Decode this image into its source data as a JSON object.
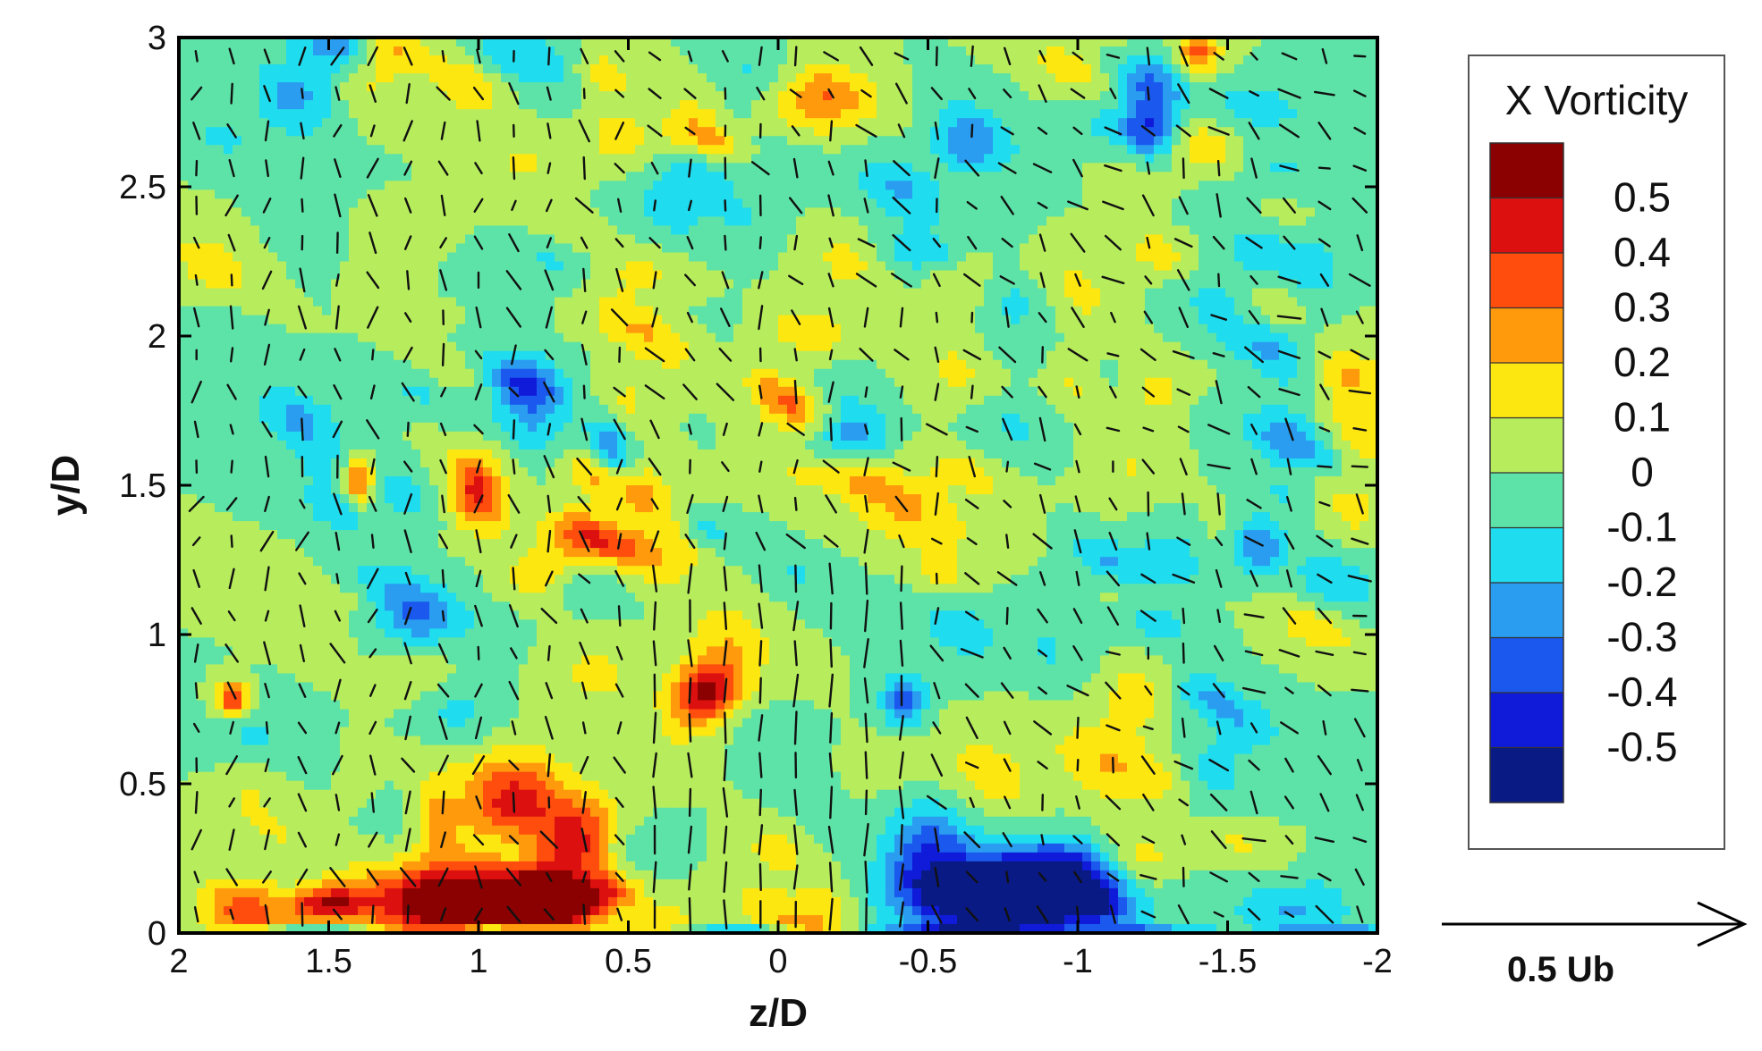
{
  "chart_data": {
    "type": "heatmap",
    "xlabel": "z/D",
    "ylabel": "y/D",
    "xlim": [
      2,
      -2
    ],
    "ylim": [
      0,
      3
    ],
    "x_ticks": [
      "2",
      "1.5",
      "1",
      "0.5",
      "0",
      "-0.5",
      "-1",
      "-1.5",
      "-2"
    ],
    "y_ticks": [
      "0",
      "0.5",
      "1",
      "1.5",
      "2",
      "2.5",
      "3"
    ],
    "legend": {
      "title": "X Vorticity",
      "labels": [
        "0.5",
        "0.4",
        "0.3",
        "0.2",
        "0.1",
        "0",
        "-0.1",
        "-0.2",
        "-0.3",
        "-0.4",
        "-0.5"
      ],
      "colors": [
        "#8b0000",
        "#dd1010",
        "#ff4d0d",
        "#ff9a0d",
        "#fde711",
        "#b7ec5c",
        "#5de3a7",
        "#1fdcef",
        "#2a9df1",
        "#1a58ee",
        "#0f1bd9",
        "#0a1a84"
      ],
      "position": "right"
    },
    "reference_vector": {
      "label": "0.5 Ub"
    },
    "features": [
      {
        "name": "positive vortex",
        "z": 0.95,
        "y": 0.12,
        "value": 0.55
      },
      {
        "name": "positive lobe",
        "z": 0.85,
        "y": 0.45,
        "value": 0.4
      },
      {
        "name": "negative vortex",
        "z": -0.8,
        "y": 0.12,
        "value": -0.55
      },
      {
        "name": "negative lobe",
        "z": -0.45,
        "y": 0.75,
        "value": -0.35
      }
    ]
  }
}
